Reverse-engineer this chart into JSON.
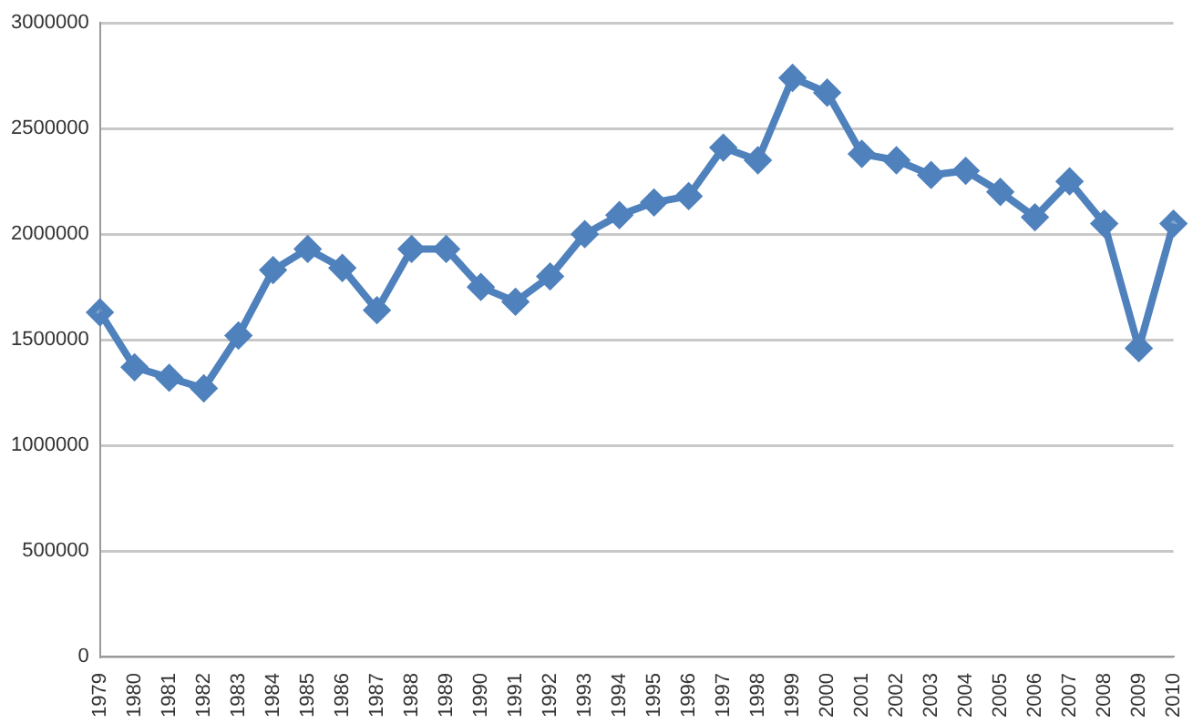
{
  "chart_data": {
    "type": "line",
    "categories": [
      "1979",
      "1980",
      "1981",
      "1982",
      "1983",
      "1984",
      "1985",
      "1986",
      "1987",
      "1988",
      "1989",
      "1990",
      "1991",
      "1992",
      "1993",
      "1994",
      "1995",
      "1996",
      "1997",
      "1998",
      "1999",
      "2000",
      "2001",
      "2002",
      "2003",
      "2004",
      "2005",
      "2006",
      "2007",
      "2008",
      "2009",
      "2010"
    ],
    "series": [
      {
        "color": "#4f81bd",
        "values": [
          1630000,
          1370000,
          1320000,
          1270000,
          1520000,
          1830000,
          1930000,
          1840000,
          1640000,
          1930000,
          1930000,
          1750000,
          1680000,
          1800000,
          2000000,
          2090000,
          2150000,
          2180000,
          2410000,
          2350000,
          2740000,
          2670000,
          2380000,
          2350000,
          2280000,
          2300000,
          2200000,
          2080000,
          2250000,
          2050000,
          1460000,
          2050000
        ]
      }
    ],
    "ylim": [
      0,
      3000000
    ],
    "yticks": [
      0,
      500000,
      1000000,
      1500000,
      2000000,
      2500000,
      3000000
    ],
    "grid": "y",
    "legend": false,
    "marker": "diamond",
    "line_style": "solid"
  }
}
